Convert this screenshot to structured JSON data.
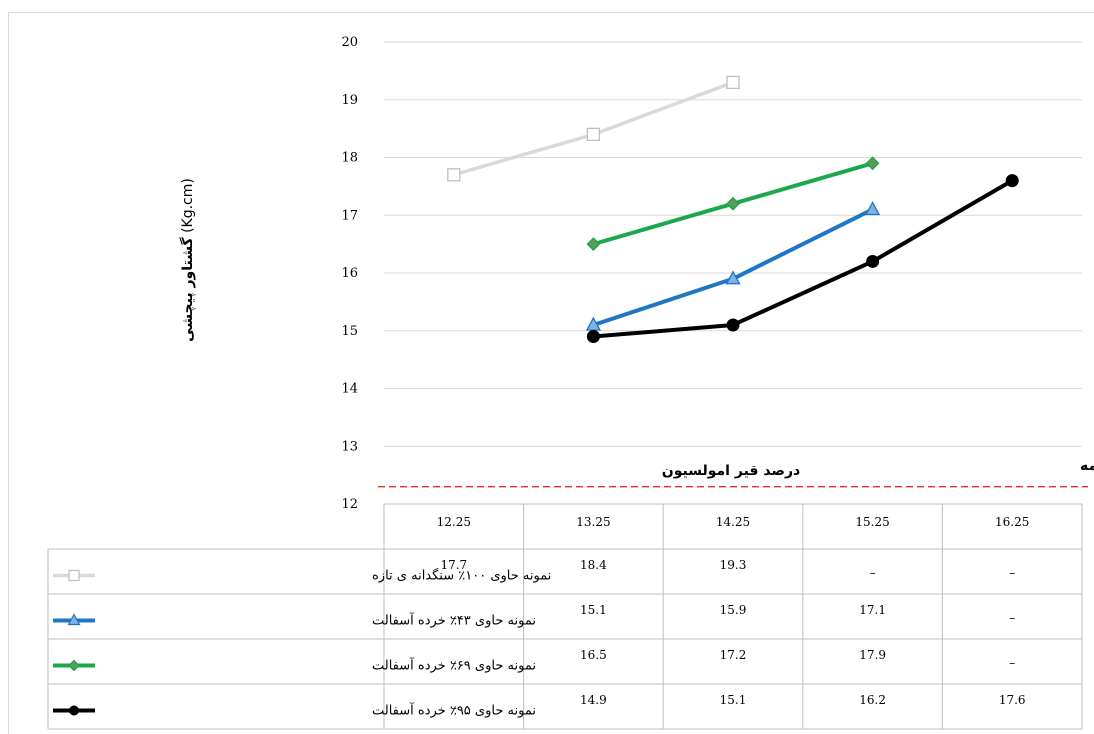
{
  "chart_data": {
    "type": "line",
    "ylabel_bold": "گشتاور پیچشی",
    "ylabel_unit": "(Kg.cm)",
    "xlabel": "درصد قیر امولسیون",
    "reference_line": {
      "label": "حد پایین آیین نامه",
      "value": 12.3,
      "color": "#e03030"
    },
    "ylim": [
      12,
      20
    ],
    "yticks": [
      12,
      13,
      14,
      15,
      16,
      17,
      18,
      19,
      20
    ],
    "categories": [
      "12.25",
      "13.25",
      "14.25",
      "15.25",
      "16.25"
    ],
    "missing_symbol": "–",
    "grid": true,
    "series": [
      {
        "name": "نمونه حاوی ۱۰۰٪ سنگدانه ی تازه",
        "color": "#d9d9d9",
        "marker": "square-open",
        "values": [
          17.7,
          18.4,
          19.3,
          null,
          null
        ]
      },
      {
        "name": "نمونه حاوی ۴۳٪ خرده آسفالت",
        "color": "#1f77c4",
        "marker": "triangle",
        "values": [
          null,
          15.1,
          15.9,
          17.1,
          null
        ]
      },
      {
        "name": "نمونه حاوی ۶۹٪ خرده آسفالت",
        "color": "#1aa84a",
        "marker": "diamond",
        "values": [
          null,
          16.5,
          17.2,
          17.9,
          null
        ]
      },
      {
        "name": "نمونه حاوی ۹۵٪ خرده آسفالت",
        "color": "#000000",
        "marker": "circle",
        "values": [
          null,
          14.9,
          15.1,
          16.2,
          17.6
        ]
      }
    ]
  }
}
